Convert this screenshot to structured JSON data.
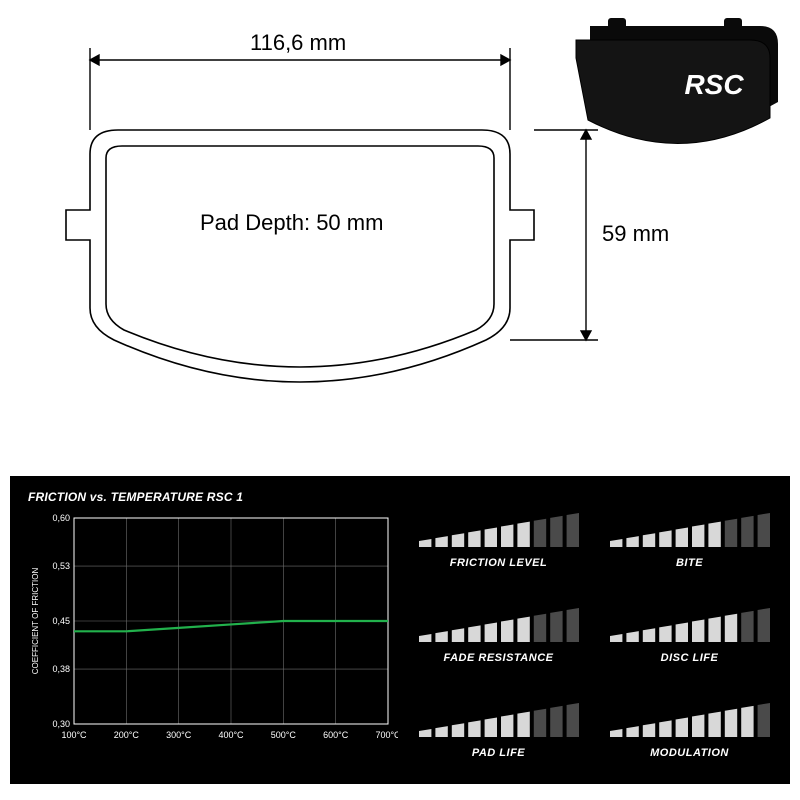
{
  "drawing": {
    "width_label": "116,6 mm",
    "height_label": "59 mm",
    "pad_depth_label": "Pad Depth: 50 mm",
    "stroke": "#000000",
    "line_width": 1.6,
    "arrow_size": 9,
    "label_fontsize": 22
  },
  "product": {
    "brand": "RSC",
    "body_color": "#141414",
    "edge_color": "#0a0a0a",
    "text_color": "#ffffff"
  },
  "panel": {
    "background": "#000000",
    "text_color": "#ffffff"
  },
  "friction_chart": {
    "type": "line",
    "title": "FRICTION vs. TEMPERATURE RSC 1",
    "x_label": null,
    "y_label": "COEFFICIENT OF FRICTION",
    "x_ticks": [
      "100°C",
      "200°C",
      "300°C",
      "400°C",
      "500°C",
      "600°C",
      "700°C"
    ],
    "y_ticks": [
      "0,30",
      "0,38",
      "0,45",
      "0,53",
      "0,60"
    ],
    "ylim": [
      0.3,
      0.6
    ],
    "xlim_index": [
      0,
      6
    ],
    "grid_color": "#6e6e6e",
    "axis_color": "#ffffff",
    "tick_fontsize": 9,
    "label_fontsize": 8,
    "line_color": "#22b14c",
    "line_width": 2.2,
    "series": {
      "x_index": [
        0,
        1,
        2,
        3,
        4,
        5,
        6
      ],
      "y": [
        0.435,
        0.435,
        0.44,
        0.445,
        0.45,
        0.45,
        0.45
      ]
    }
  },
  "metrics": {
    "bar_count": 10,
    "on_color": "#d8d8d8",
    "off_color": "#4a4a4a",
    "items": [
      {
        "label": "FRICTION LEVEL",
        "value": 7
      },
      {
        "label": "BITE",
        "value": 7
      },
      {
        "label": "FADE RESISTANCE",
        "value": 7
      },
      {
        "label": "DISC LIFE",
        "value": 8
      },
      {
        "label": "PAD LIFE",
        "value": 7
      },
      {
        "label": "MODULATION",
        "value": 9
      }
    ]
  }
}
